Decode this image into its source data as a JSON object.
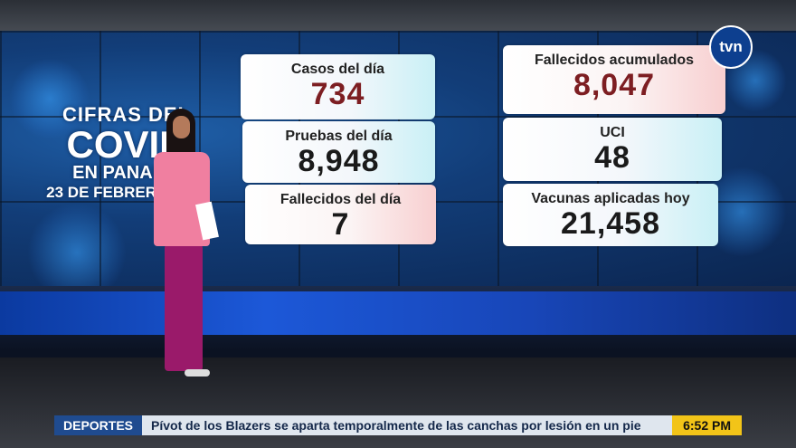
{
  "overlay_title": {
    "line1": "CIFRAS DEL",
    "line2": "COVID",
    "line3": "EN PANAMÁ",
    "line4": "23 DE FEBRERO 2022"
  },
  "stats": {
    "casos_label": "Casos del día",
    "casos_value": "734",
    "pruebas_label": "Pruebas del día",
    "pruebas_value": "8,948",
    "fallecidos_label": "Fallecidos del día",
    "fallecidos_value": "7",
    "acumulados_label": "Fallecidos acumulados",
    "acumulados_value": "8,047",
    "uci_label": "UCI",
    "uci_value": "48",
    "vacunas_label": "Vacunas aplicadas hoy",
    "vacunas_value": "21,458"
  },
  "logo": "tvn",
  "ticker": {
    "category": "DEPORTES",
    "headline": "Pívot de los Blazers se aparta temporalmente de las canchas por lesión en un pie",
    "time": "6:52 PM"
  },
  "colors": {
    "value_maroon": "#7d1e22",
    "ticker_label_bg": "#1f4b8f",
    "ticker_time_bg": "#f2c418"
  }
}
